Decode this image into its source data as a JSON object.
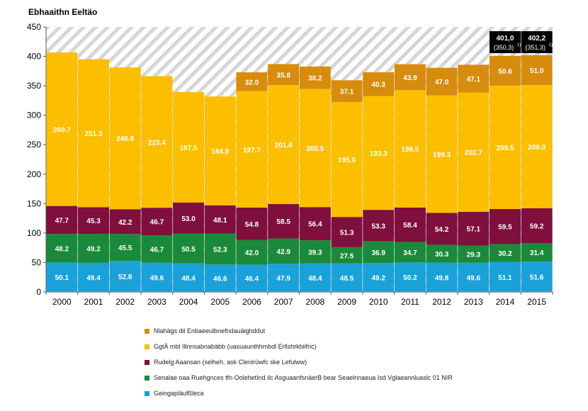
{
  "chart_data": {
    "type": "bar",
    "title": "Ebhaaithn Eeltäo",
    "categories": [
      "2000",
      "2001",
      "2002",
      "2003",
      "2004",
      "2005",
      "2006",
      "2007",
      "2008",
      "2009",
      "2010",
      "2011",
      "2012",
      "2013",
      "2014",
      "2015"
    ],
    "ylim": [
      0,
      450
    ],
    "yticks": [
      0,
      50,
      100,
      150,
      200,
      250,
      300,
      350,
      400,
      450
    ],
    "grid": "hatched-background",
    "legend_position": "bottom",
    "stacked": true,
    "series": [
      {
        "name": "Geingapläufßleca",
        "color": "#1ba1d9",
        "values": [
          50.1,
          49.4,
          52.8,
          49.6,
          48.4,
          46.6,
          46.4,
          47.9,
          48.4,
          48.5,
          49.2,
          50.2,
          49.8,
          49.6,
          51.1,
          51.6
        ],
        "labels": [
          "50.1",
          "49.4",
          "52.8",
          "49.6",
          "48.4",
          "46.6",
          "46.4",
          "47.9",
          "48.4",
          "48.5",
          "49.2",
          "50.2",
          "49.8",
          "49.6",
          "51.1",
          "51.6"
        ]
      },
      {
        "name": "Senalae oaa Ruehgnces tfn OolehetInd ilc AsguaanfsnäerB bear Seaelnnaeua Isd Vglaeannluaslc 01 NIR",
        "color": "#1a8a3a",
        "values": [
          48.2,
          49.2,
          45.5,
          46.7,
          50.5,
          52.3,
          42.0,
          42.9,
          39.3,
          27.5,
          36.9,
          34.7,
          30.3,
          29.3,
          30.2,
          31.4
        ],
        "labels": [
          "48.2",
          "49.2",
          "45.5",
          "46.7",
          "50.5",
          "52.3",
          "42.0",
          "42.9",
          "39.3",
          "27.5",
          "36.9",
          "34.7",
          "30.3",
          "29.3",
          "30.2",
          "31.4"
        ]
      },
      {
        "name": "Rudelg Aaansan (selheh. ask Clenlrüwfc ske Lefulww)",
        "color": "#7f0f3c",
        "values": [
          47.7,
          45.3,
          42.2,
          46.7,
          53.0,
          48.1,
          54.8,
          58.5,
          56.4,
          51.3,
          53.3,
          58.4,
          54.2,
          57.1,
          59.5,
          59.2
        ],
        "labels": [
          "47.7",
          "45.3",
          "42.2",
          "46.7",
          "53.0",
          "48.1",
          "54.8",
          "58.5",
          "56.4",
          "51.3",
          "53.3",
          "58.4",
          "54.2",
          "57.1",
          "59.5",
          "59.2"
        ]
      },
      {
        "name": "GgtÄ mbl Illnnsabnabäbb (uasuaunthhmbdl Erllshrkbiifric)",
        "color": "#fbbf00",
        "values": [
          260.7,
          251.3,
          240.8,
          223.4,
          187.5,
          184.9,
          197.7,
          201.8,
          200.5,
          195.0,
          193.3,
          199.5,
          199.3,
          202.7,
          209.5,
          209.0
        ],
        "labels": [
          "260.7",
          "251.3",
          "240.8",
          "223.4",
          "187.5",
          "184.9",
          "197.7",
          "201.8",
          "200.5",
          "195.0",
          "193.3",
          "199.5",
          "199.3",
          "202.7",
          "209.5",
          "209.0"
        ]
      },
      {
        "name": "Nlahägs dil Enbaeeulbnefndauäighddut",
        "color": "#d88c0d",
        "values": [
          0,
          0,
          0,
          0,
          0,
          0,
          32.0,
          35.8,
          38.2,
          37.1,
          40.3,
          43.9,
          47.0,
          47.1,
          50.6,
          51.0
        ],
        "labels": [
          "",
          "",
          "",
          "",
          "",
          "",
          "32.0",
          "35.8",
          "38.2",
          "37.1",
          "40.3",
          "43.9",
          "47.0",
          "47.1",
          "50.6",
          "51.0"
        ]
      }
    ],
    "callouts": [
      {
        "category": "2014",
        "line1": "401,0",
        "line2": "(350,3)",
        "sup": "1)"
      },
      {
        "category": "2015",
        "line1": "402,2",
        "line2": "(351,3)",
        "sup": "1)"
      }
    ]
  }
}
